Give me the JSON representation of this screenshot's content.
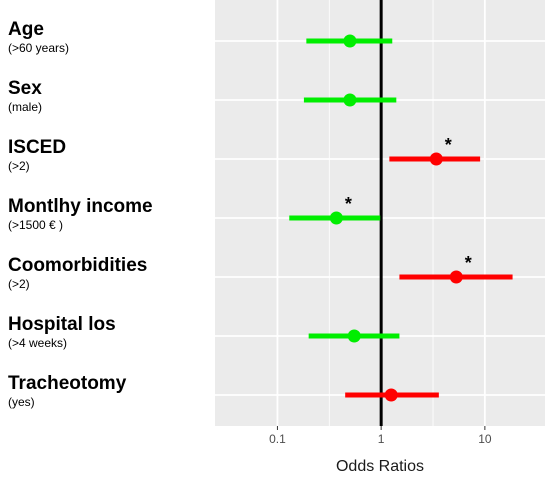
{
  "chart_data": {
    "type": "forest",
    "xlabel": "Odds Ratios",
    "xscale": "log",
    "xlim": [
      0.025,
      38
    ],
    "xticks": [
      {
        "value": 0.1,
        "label": "0.1"
      },
      {
        "value": 1,
        "label": "1"
      },
      {
        "value": 10,
        "label": "10"
      }
    ],
    "reference_line": 1,
    "grid": true,
    "colors": {
      "significant_increase": "#ff0000",
      "decrease_or_ns": "#00ee00",
      "panel": "#ebebeb",
      "grid": "#ffffff",
      "reference": "#000000"
    },
    "rows": [
      {
        "name": "Age",
        "sub": "(>60 years)",
        "or": 0.5,
        "lo": 0.19,
        "hi": 1.28,
        "color": "#00ee00",
        "significant": false,
        "star": ""
      },
      {
        "name": "Sex",
        "sub": "(male)",
        "or": 0.5,
        "lo": 0.18,
        "hi": 1.4,
        "color": "#00ee00",
        "significant": false,
        "star": ""
      },
      {
        "name": "ISCED",
        "sub": "(>2)",
        "or": 3.4,
        "lo": 1.2,
        "hi": 9.0,
        "color": "#ff0000",
        "significant": true,
        "star": "*"
      },
      {
        "name": "Montlhy income",
        "sub": "(>1500 € )",
        "or": 0.37,
        "lo": 0.13,
        "hi": 0.98,
        "color": "#00ee00",
        "significant": true,
        "star": "*"
      },
      {
        "name": "Coomorbidities",
        "sub": "(>2)",
        "or": 5.3,
        "lo": 1.5,
        "hi": 18.5,
        "color": "#ff0000",
        "significant": true,
        "star": "*"
      },
      {
        "name": "Hospital los",
        "sub": "(>4 weeks)",
        "or": 0.55,
        "lo": 0.2,
        "hi": 1.5,
        "color": "#00ee00",
        "significant": false,
        "star": ""
      },
      {
        "name": "Tracheotomy",
        "sub": "(yes)",
        "or": 1.25,
        "lo": 0.45,
        "hi": 3.6,
        "color": "#ff0000",
        "significant": false,
        "star": ""
      }
    ]
  }
}
